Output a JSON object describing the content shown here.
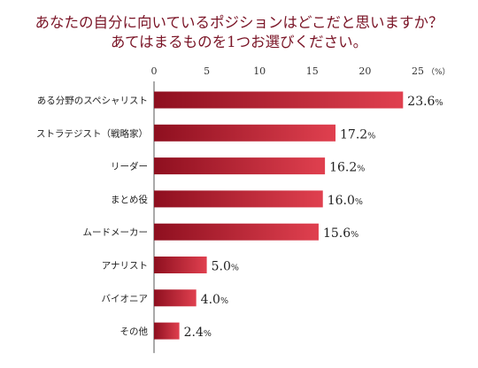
{
  "header": {
    "title_line1": "あなたの自分に向いているポジションはどこだと思いますか？",
    "title_line2": "あてはまるものを1つお選びください。"
  },
  "colors": {
    "title": "#7a1426",
    "bar_dark": "#8e0f1f",
    "bar_light": "#e0404f"
  },
  "chart_data": {
    "type": "bar",
    "orientation": "horizontal",
    "categories": [
      "ある分野のスペシャリスト",
      "ストラテジスト（戦略家）",
      "リーダー",
      "まとめ役",
      "ムードメーカー",
      "アナリスト",
      "バイオニア",
      "その他"
    ],
    "values": [
      23.6,
      17.2,
      16.2,
      16.0,
      15.6,
      5.0,
      4.0,
      2.4
    ],
    "value_unit": "%",
    "xlim": [
      0,
      25
    ],
    "x_ticks": [
      0,
      5,
      10,
      15,
      20,
      25
    ],
    "axis_unit_label": "（%）",
    "grid": false
  }
}
